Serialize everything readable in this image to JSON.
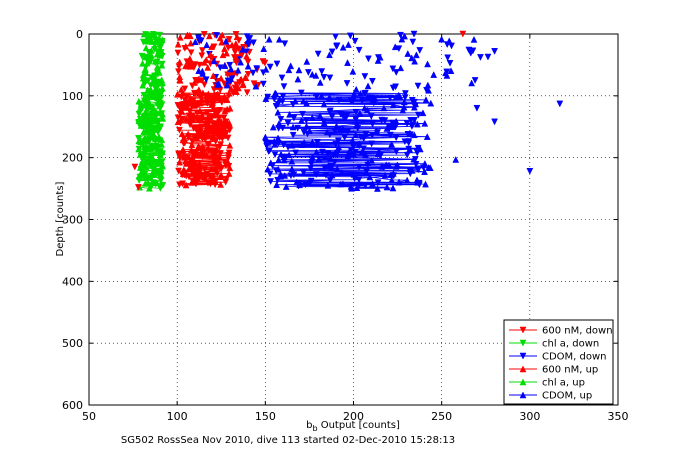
{
  "chart_data": {
    "type": "scatter",
    "xlabel_main": "b",
    "xlabel_sub": "b",
    "xlabel_rest": " Output [counts]",
    "ylabel": "Depth [counts]",
    "caption": "SG502 RossSea Nov 2010, dive 113 started 02-Dec-2010 15:28:13",
    "xlim": [
      50,
      350
    ],
    "ylim": [
      0,
      600
    ],
    "y_reversed": true,
    "x_ticks": [
      50,
      100,
      150,
      200,
      250,
      300,
      350
    ],
    "y_ticks": [
      0,
      100,
      200,
      300,
      400,
      500,
      600
    ],
    "grid": true,
    "legend_position": "lower-right",
    "series": [
      {
        "name": "600 nM, down",
        "color": "#ff0000",
        "marker": "tri-down",
        "upper": {
          "y0": 0,
          "y1": 95,
          "xmin": 100,
          "xmax": 150
        },
        "dense": {
          "y0": 95,
          "y1": 245,
          "xmin": 100,
          "xmax": 130
        },
        "count": 220
      },
      {
        "name": "chl a, down",
        "color": "#00dd00",
        "marker": "tri-down",
        "upper": {
          "y0": 0,
          "y1": 95,
          "xmin": 80,
          "xmax": 92
        },
        "dense": {
          "y0": 95,
          "y1": 250,
          "xmin": 78,
          "xmax": 92
        },
        "count": 160
      },
      {
        "name": "CDOM, down",
        "color": "#0000ff",
        "marker": "tri-down",
        "upper": {
          "y0": 0,
          "y1": 95,
          "xmin": 110,
          "xmax": 280
        },
        "dense": {
          "y0": 95,
          "y1": 250,
          "xmin": 150,
          "xmax": 240
        },
        "count": 220
      },
      {
        "name": "600 nM, up",
        "color": "#ff0000",
        "marker": "tri-up",
        "upper": {
          "y0": 0,
          "y1": 95,
          "xmin": 100,
          "xmax": 140
        },
        "dense": {
          "y0": 95,
          "y1": 245,
          "xmin": 100,
          "xmax": 130
        },
        "count": 200
      },
      {
        "name": "chl a, up",
        "color": "#00dd00",
        "marker": "tri-up",
        "upper": {
          "y0": 0,
          "y1": 95,
          "xmin": 80,
          "xmax": 92
        },
        "dense": {
          "y0": 95,
          "y1": 250,
          "xmin": 78,
          "xmax": 92
        },
        "count": 160
      },
      {
        "name": "CDOM, up",
        "color": "#0000ff",
        "marker": "tri-up",
        "upper": {
          "y0": 0,
          "y1": 95,
          "xmin": 110,
          "xmax": 270
        },
        "dense": {
          "y0": 95,
          "y1": 250,
          "xmin": 150,
          "xmax": 245
        },
        "count": 200
      }
    ],
    "outliers": [
      {
        "series": 2,
        "x": 317,
        "y": 113
      },
      {
        "series": 2,
        "x": 300,
        "y": 222
      },
      {
        "series": 2,
        "x": 280,
        "y": 142
      },
      {
        "series": 2,
        "x": 270,
        "y": 120
      },
      {
        "series": 5,
        "x": 236,
        "y": 236
      },
      {
        "series": 5,
        "x": 258,
        "y": 203
      },
      {
        "series": 2,
        "x": 280,
        "y": 28
      },
      {
        "series": 0,
        "x": 262,
        "y": 0
      },
      {
        "series": 0,
        "x": 76,
        "y": 215
      },
      {
        "series": 0,
        "x": 78,
        "y": 248
      }
    ]
  }
}
